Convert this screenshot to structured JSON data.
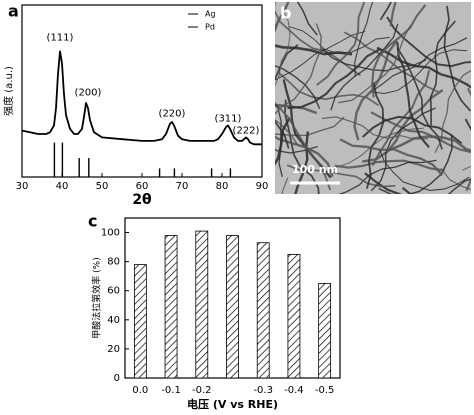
{
  "chart_data": [
    {
      "type": "line",
      "label": "a",
      "xlabel": "2θ",
      "ylabel": "强度 (a.u.)",
      "color": "#000000",
      "x": [
        30,
        32,
        34,
        36,
        37,
        38,
        38.5,
        39,
        39.5,
        40,
        40.5,
        41,
        42,
        43,
        44,
        45,
        45.5,
        46,
        46.5,
        47,
        48,
        50,
        55,
        60,
        63,
        65,
        66,
        67,
        67.5,
        68,
        69,
        70,
        72,
        75,
        78,
        79,
        80,
        81,
        81.5,
        82,
        83,
        84,
        85,
        85.5,
        86,
        86.5,
        87,
        88,
        90
      ],
      "values": [
        27,
        26,
        25,
        25,
        26,
        30,
        40,
        60,
        73,
        66,
        48,
        36,
        28,
        25,
        25,
        28,
        35,
        43,
        40,
        33,
        26,
        23,
        22,
        21,
        21,
        22,
        25,
        31,
        32,
        30,
        24,
        22,
        21,
        21,
        21,
        22,
        25,
        29,
        30,
        28,
        23,
        21,
        21,
        22,
        23,
        22,
        20,
        19,
        19
      ],
      "references": [
        {
          "name": "Ag",
          "color": "#000000",
          "x": [
            38.1,
            44.3,
            64.4,
            77.4
          ],
          "values": [
            20,
            11,
            5,
            5
          ]
        },
        {
          "name": "Pd",
          "color": "#000000",
          "x": [
            40.1,
            46.7,
            68.1,
            82.1
          ],
          "values": [
            20,
            11,
            5,
            5
          ]
        }
      ],
      "annotations": [
        {
          "text": "(111)",
          "x": 39.5,
          "y": 81
        },
        {
          "text": "(200)",
          "x": 46.5,
          "y": 49
        },
        {
          "text": "(220)",
          "x": 67.5,
          "y": 37
        },
        {
          "text": "(311)",
          "x": 81.5,
          "y": 34
        },
        {
          "text": "(222)",
          "x": 86,
          "y": 27
        }
      ],
      "xlim": [
        30,
        90
      ],
      "xticks": [
        30,
        40,
        50,
        60,
        70,
        80,
        90
      ],
      "ylim": [
        0,
        100
      ]
    },
    {
      "type": "image",
      "label": "b",
      "scale_bar": "100 nm"
    },
    {
      "type": "bar",
      "label": "c",
      "xlabel": "电压 (V vs RHE)",
      "ylabel": "甲酸法拉第效率 (%)",
      "color": "#000000",
      "categories": [
        "0.0",
        "-0.1",
        "-0.2",
        null,
        "-0.3",
        "-0.4",
        "-0.5"
      ],
      "values": [
        78,
        98,
        101,
        98,
        93,
        85,
        65
      ],
      "ylim": [
        0,
        110
      ],
      "yticks": [
        0,
        20,
        40,
        60,
        80,
        100
      ]
    }
  ]
}
